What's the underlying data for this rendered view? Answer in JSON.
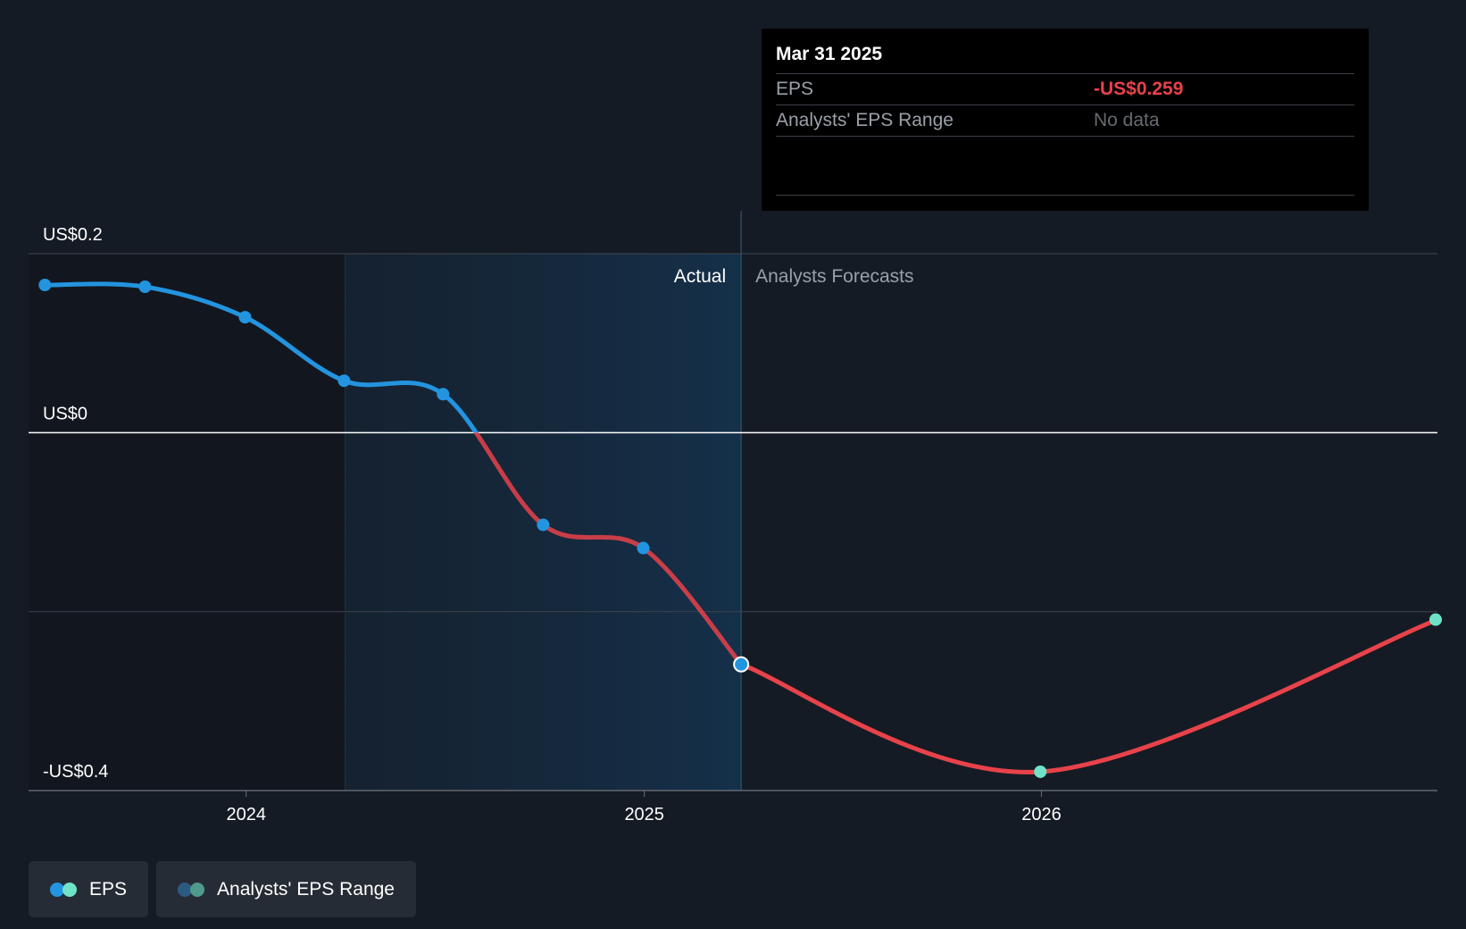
{
  "chart_data": {
    "type": "line",
    "y_tick_labels": [
      "US$0.2",
      "US$0",
      "-US$0.4"
    ],
    "y_ticks": [
      0.2,
      0.0,
      -0.2,
      -0.4
    ],
    "ylim": [
      -0.4,
      0.2
    ],
    "x_tick_labels": [
      "2024",
      "2025",
      "2026"
    ],
    "x_ticks": [
      "2024-01-01",
      "2025-01-01",
      "2026-01-01"
    ],
    "xlim": [
      "2023-06-15",
      "2026-12-31"
    ],
    "past_shade_range": [
      "2024-04-01",
      "2025-03-31"
    ],
    "divider_date": "2025-03-31",
    "section_labels": {
      "actual": "Actual",
      "forecast": "Analysts Forecasts"
    },
    "series": [
      {
        "name": "EPS",
        "kind": "actual",
        "x": [
          "2023-06-30",
          "2023-09-30",
          "2023-12-31",
          "2024-03-31",
          "2024-06-30",
          "2024-09-30",
          "2024-12-31",
          "2025-03-31"
        ],
        "y": [
          0.165,
          0.163,
          0.129,
          0.058,
          0.043,
          -0.103,
          -0.129,
          -0.259
        ]
      },
      {
        "name": "EPS",
        "kind": "forecast",
        "x": [
          "2025-03-31",
          "2025-12-31",
          "2026-12-31"
        ],
        "y": [
          -0.259,
          -0.379,
          -0.209
        ]
      }
    ],
    "colors": {
      "positive": "#2394df",
      "negative": "#e8424a",
      "actual_marker": "#2394df",
      "forecast_marker": "#6fe3c8",
      "zero_line": "#ffffff",
      "grid": "#3a4049"
    }
  },
  "tooltip": {
    "date": "Mar 31 2025",
    "eps_label": "EPS",
    "eps_value": "-US$0.259",
    "range_label": "Analysts' EPS Range",
    "range_value": "No data"
  },
  "legend": [
    {
      "label": "EPS",
      "colors": [
        "#2394df",
        "#6fe3c8"
      ]
    },
    {
      "label": "Analysts' EPS Range",
      "colors": [
        "#2c5b82",
        "#4f9a8d"
      ]
    }
  ]
}
